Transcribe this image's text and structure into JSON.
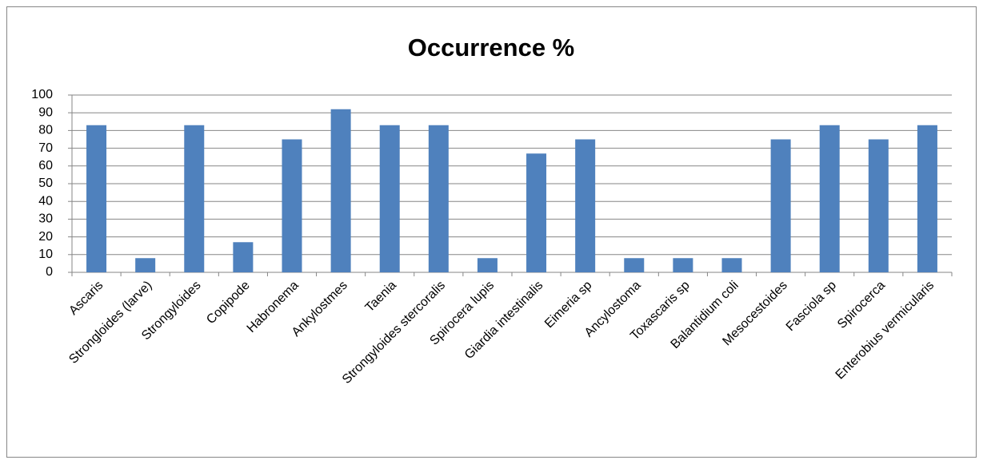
{
  "chart_data": {
    "type": "bar",
    "title": "Occurrence %",
    "categories": [
      "Ascaris",
      "Strongloides (larve)",
      "Strongyloides",
      "Copipode",
      "Habronema",
      "Ankylostmes",
      "Taenia",
      "Strongyloides stercoralis",
      "Spirocera lupis",
      "Giardia intestinalis",
      "Eimeria sp",
      "Ancylostoma",
      "Toxascaris sp",
      "Balantidium coli",
      "Mesocestoides",
      "Fasciola sp",
      "Spirocerca",
      "Enterobius vermicularis"
    ],
    "values": [
      83,
      8,
      83,
      17,
      75,
      92,
      83,
      83,
      8,
      67,
      75,
      8,
      8,
      8,
      75,
      83,
      75,
      83
    ],
    "color": "#4f81bd",
    "ylim": [
      0,
      100
    ],
    "yticks": [
      0,
      10,
      20,
      30,
      40,
      50,
      60,
      70,
      80,
      90,
      100
    ],
    "grid": true
  }
}
